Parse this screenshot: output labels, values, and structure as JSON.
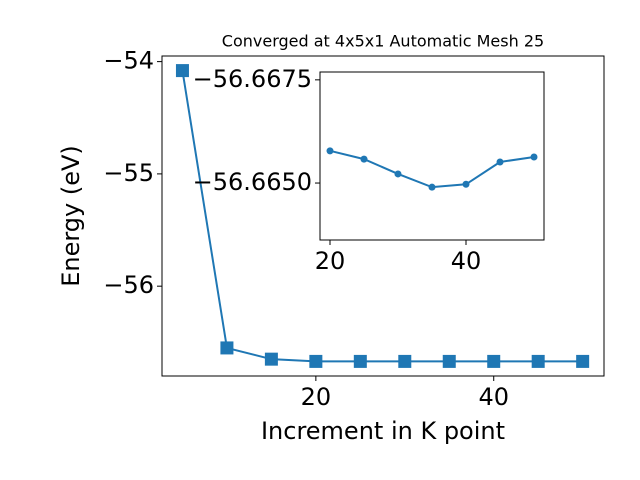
{
  "chart_data": [
    {
      "type": "line",
      "title": "Converged at 4x5x1 Automatic Mesh 25",
      "x_label": "Increment in K point",
      "y_label": "Energy (eV)",
      "marker": "square",
      "series": [
        {
          "color": "#1f77b4",
          "x": [
            5,
            10,
            15,
            20,
            25,
            30,
            35,
            40,
            45,
            50
          ],
          "values": [
            -54.08,
            -56.55,
            -56.65,
            -56.67,
            -56.67,
            -56.67,
            -56.67,
            -56.67,
            -56.67,
            -56.67
          ]
        }
      ],
      "xlim": [
        2.7,
        52.4
      ],
      "xticks": [
        20,
        40
      ],
      "ylim": [
        -56.8,
        -53.95
      ],
      "yticks": [
        {
          "value": -56,
          "label": "−56"
        },
        {
          "value": -55,
          "label": "−55"
        },
        {
          "value": -54,
          "label": "−54"
        }
      ]
    },
    {
      "type": "line",
      "marker": "circle",
      "series": [
        {
          "color": "#1f77b4",
          "x": [
            20,
            25,
            30,
            35,
            40,
            45,
            50
          ],
          "values": [
            -56.66578,
            -56.66558,
            -56.66522,
            -56.6649,
            -56.66497,
            -56.66551,
            -56.66563
          ]
        }
      ],
      "xlim": [
        18.53,
        51.47
      ],
      "xticks": [
        20,
        40
      ],
      "ylim": [
        -56.66362,
        -56.66769
      ],
      "yticks": [
        {
          "value": -56.665,
          "label": "−56.6650"
        },
        {
          "value": -56.6675,
          "label": "−56.6675"
        }
      ]
    }
  ]
}
